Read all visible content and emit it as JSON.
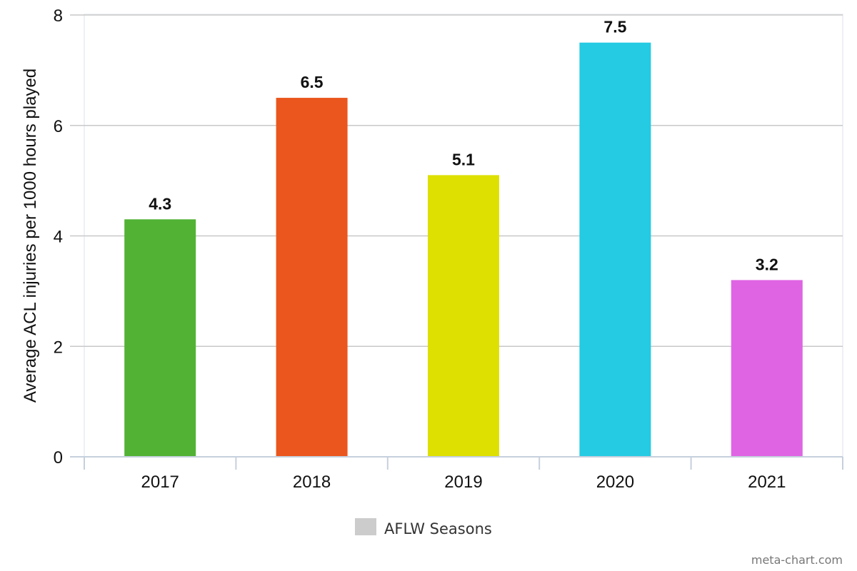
{
  "chart_data": {
    "type": "bar",
    "title": "",
    "xlabel": "",
    "ylabel": "Average ACL injuries per 1000 hours played",
    "categories": [
      "2017",
      "2018",
      "2019",
      "2020",
      "2021"
    ],
    "values": [
      4.3,
      6.5,
      5.1,
      7.5,
      3.2
    ],
    "data_labels": [
      "4.3",
      "6.5",
      "5.1",
      "7.5",
      "3.2"
    ],
    "colors": [
      "#52b234",
      "#ea561d",
      "#dde000",
      "#25cae3",
      "#df64e4"
    ],
    "ylim": [
      0,
      8
    ],
    "yticks": [
      0,
      2,
      4,
      6,
      8
    ],
    "grid": true,
    "legend": {
      "placement": "bottom",
      "entries": [
        {
          "label": "AFLW Seasons",
          "color": "#cccccc"
        }
      ]
    }
  },
  "credit": "meta-chart.com"
}
